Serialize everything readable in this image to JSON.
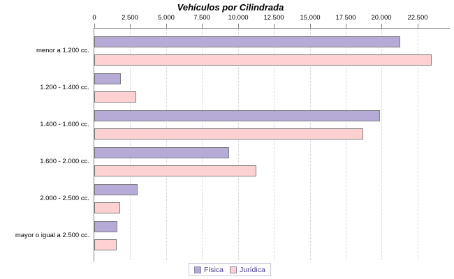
{
  "title": "Vehículos por Cilindrada",
  "chart_data": {
    "type": "bar",
    "orientation": "horizontal",
    "title": "Vehículos por Cilindrada",
    "xlabel": "",
    "ylabel": "",
    "grid": true,
    "legend_position": "bottom",
    "xlim": [
      0,
      24700
    ],
    "xticks": [
      0,
      2500,
      5000,
      7500,
      10000,
      12500,
      15000,
      17500,
      20000,
      22500
    ],
    "xtick_labels": [
      "0",
      "2.500",
      "5.000",
      "7.500",
      "10.000",
      "12.500",
      "15.000",
      "17.500",
      "20.000",
      "22.500"
    ],
    "categories": [
      "menor a 1.200 cc.",
      "1.200 - 1.400 cc.",
      "1.400 - 1.600 cc.",
      "1.600 - 2.000 cc.",
      "2.000 - 2.500 cc.",
      "mayor o igual a 2.500 cc."
    ],
    "series": [
      {
        "name": "Física",
        "color": "#b6abd7",
        "values": [
          21300,
          1850,
          19900,
          9400,
          3000,
          1600
        ]
      },
      {
        "name": "Jurídica",
        "color": "#fdd1d1",
        "values": [
          23500,
          2900,
          18700,
          11300,
          1800,
          1550
        ]
      }
    ]
  },
  "colors": {
    "bar_border": "#7e7e7e",
    "axis": "#808080",
    "gridline": "#d8d8d8",
    "legend_text": "#4b3d92",
    "legend_border": "#c9c6d9",
    "background": "#ffffff"
  }
}
